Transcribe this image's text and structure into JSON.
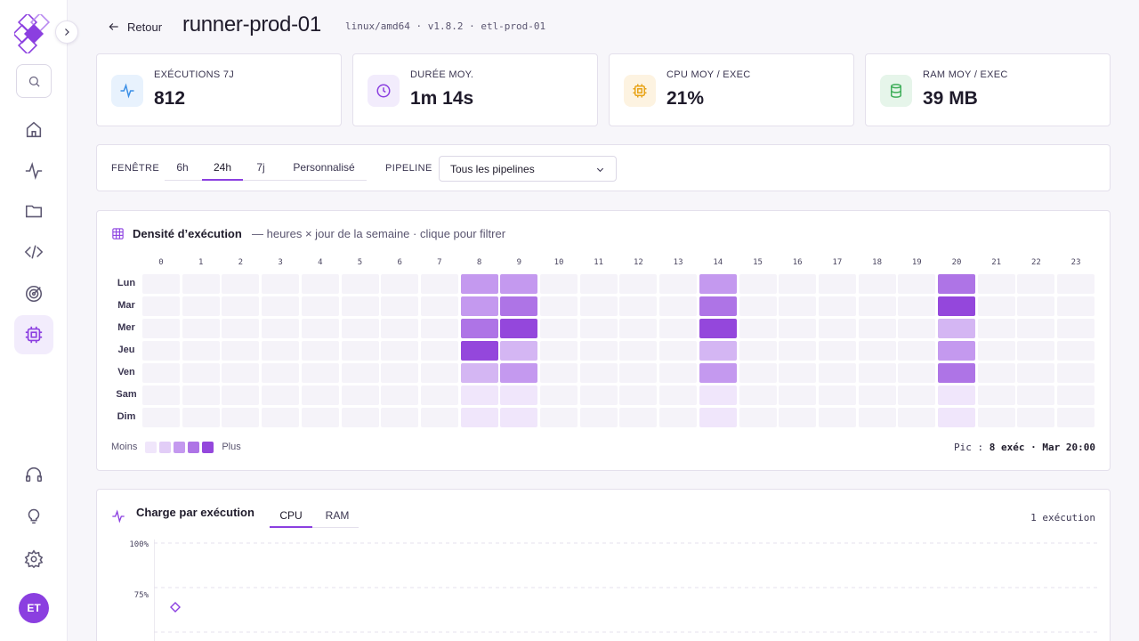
{
  "header": {
    "back_label": "Retour",
    "title": "runner-prod-01",
    "meta": "linux/amd64 · v1.8.2 · etl-prod-01"
  },
  "sidebar": {
    "user_initials": "ET",
    "items": [
      {
        "icon": "home-icon"
      },
      {
        "icon": "activity-icon"
      },
      {
        "icon": "folder-icon"
      },
      {
        "icon": "code-icon"
      },
      {
        "icon": "target-icon"
      },
      {
        "icon": "cpu-icon",
        "active": true
      }
    ],
    "bottom_items": [
      {
        "icon": "headphones-icon"
      },
      {
        "icon": "lightbulb-icon"
      },
      {
        "icon": "gear-icon"
      }
    ]
  },
  "stats": [
    {
      "label": "EXÉCUTIONS 7J",
      "value": "812",
      "icon": "activity-icon",
      "color": "#3b8fe6"
    },
    {
      "label": "DURÉE MOY.",
      "value": "1m 14s",
      "icon": "clock-icon",
      "color": "#8b3fe0"
    },
    {
      "label": "CPU MOY / EXEC",
      "value": "21%",
      "icon": "cpu-icon",
      "color": "#e8a317"
    },
    {
      "label": "RAM MOY / EXEC",
      "value": "39 MB",
      "icon": "database-icon",
      "color": "#3fae5a"
    }
  ],
  "filters": {
    "window_label": "FENÊTRE",
    "window_tabs": [
      "6h",
      "24h",
      "7j",
      "Personnalisé"
    ],
    "window_selected": "24h",
    "pipeline_label": "PIPELINE",
    "pipeline_value": "Tous les pipelines"
  },
  "heatmap": {
    "title": "Densité d’exécution",
    "subtitle": "— heures × jour de la semaine · clique pour filtrer",
    "hours": [
      "0",
      "1",
      "2",
      "3",
      "4",
      "5",
      "6",
      "7",
      "8",
      "9",
      "10",
      "11",
      "12",
      "13",
      "14",
      "15",
      "16",
      "17",
      "18",
      "19",
      "20",
      "21",
      "22",
      "23"
    ],
    "days": [
      "Lun",
      "Mar",
      "Mer",
      "Jeu",
      "Ven",
      "Sam",
      "Dim"
    ],
    "levels": {
      "Lun": {
        "8": 3,
        "9": 3,
        "14": 3,
        "20": 4
      },
      "Mar": {
        "8": 3,
        "9": 4,
        "14": 4,
        "20": 5
      },
      "Mer": {
        "8": 4,
        "9": 5,
        "14": 5,
        "20": 2
      },
      "Jeu": {
        "8": 5,
        "9": 2,
        "14": 2,
        "20": 3
      },
      "Ven": {
        "8": 2,
        "9": 3,
        "14": 3,
        "20": 4
      },
      "Sam": {
        "8": 1,
        "9": 1,
        "14": 1,
        "20": 1
      },
      "Dim": {
        "8": 1,
        "9": 1,
        "14": 1,
        "20": 1
      }
    },
    "palette": [
      "#f5f3f9",
      "#f0e6fb",
      "#d4b6f3",
      "#c499ef",
      "#ae74e6",
      "#9447dc"
    ],
    "legend_less": "Moins",
    "legend_more": "Plus",
    "peak_prefix": "Pic :",
    "peak_value": "8 exéc · Mar 20:00"
  },
  "load": {
    "title": "Charge par exécution",
    "tabs": [
      "CPU",
      "RAM"
    ],
    "selected_tab": "CPU",
    "count": "1 exécution",
    "y_ticks": [
      "100%",
      "75%"
    ],
    "points": [
      {
        "index": 1,
        "value": 0.64
      }
    ]
  }
}
